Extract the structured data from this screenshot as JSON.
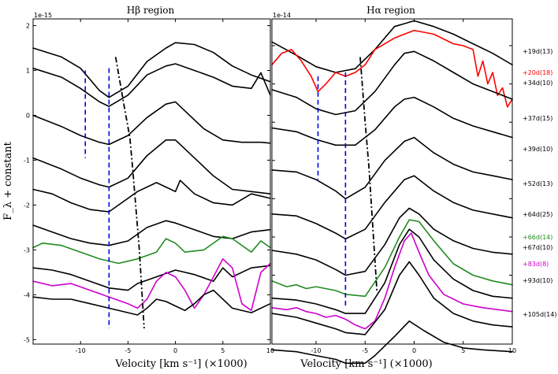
{
  "chart_data": {
    "type": "line",
    "panels": [
      {
        "title": "Hβ region",
        "scale_label": "1e-15",
        "xlim": [
          -15,
          10
        ],
        "ylim": [
          -5.1,
          2.15
        ],
        "xticks": [
          -10,
          -5,
          0,
          5,
          10
        ],
        "yticks": [
          -5,
          -4,
          -3,
          -2,
          -1,
          0,
          1,
          2
        ],
        "vlines": [
          -9.5,
          -7.0,
          -6.8
        ],
        "trend": {
          "x": [
            -6.3,
            -5.4,
            -4.8,
            -4.5,
            -3.8,
            -3.3
          ],
          "y": [
            1.3,
            0.2,
            -0.5,
            -1.2,
            -3.0,
            -4.75
          ]
        }
      },
      {
        "title": "Hα region",
        "scale_label": "1e-14",
        "xlim": [
          -14.5,
          10
        ],
        "ylim": [
          -1.8,
          6.7
        ],
        "xticks": [
          -10,
          -5,
          0,
          5,
          10
        ],
        "yticks": [
          0,
          1,
          2,
          3,
          4,
          5,
          6
        ],
        "tick_labels_shown": false,
        "vlines": [
          -9.8,
          -7.0,
          -6.8
        ],
        "trend": {
          "x": [
            -5.5,
            -5.0,
            -4.6,
            -4.2,
            -3.8
          ],
          "y": [
            5.7,
            4.0,
            2.8,
            1.2,
            -0.4
          ]
        }
      }
    ],
    "series": [
      {
        "name": "+19d(13)",
        "color": "#000000",
        "hb": {
          "x": [
            -15,
            -12,
            -10,
            -8,
            -7,
            -5,
            -3,
            -1,
            0,
            2,
            4,
            6,
            8,
            10
          ],
          "y": [
            1.5,
            1.3,
            1.05,
            0.55,
            0.4,
            0.65,
            1.2,
            1.5,
            1.62,
            1.58,
            1.4,
            1.1,
            0.9,
            0.75
          ]
        },
        "ha": {
          "x": [
            -14.5,
            -12,
            -10,
            -8,
            -6,
            -4,
            -2,
            0,
            2,
            4,
            6,
            8,
            10
          ],
          "y": [
            6.1,
            5.75,
            5.45,
            5.3,
            5.4,
            5.9,
            6.5,
            6.65,
            6.5,
            6.3,
            6.05,
            5.8,
            5.5
          ]
        }
      },
      {
        "name": "+20d(18)",
        "color": "#ff0000",
        "hb": null,
        "ha": {
          "x": [
            -14.5,
            -13.5,
            -12.5,
            -11.5,
            -10.5,
            -9.8,
            -9,
            -8,
            -7,
            -6,
            -5,
            -4,
            -2,
            -1,
            0,
            2,
            4,
            5,
            6,
            6.5,
            7,
            7.5,
            8,
            8.5,
            9,
            9.5,
            10
          ],
          "y": [
            5.5,
            5.8,
            5.9,
            5.6,
            5.2,
            4.8,
            5.0,
            5.3,
            5.2,
            5.3,
            5.5,
            5.9,
            6.2,
            6.3,
            6.4,
            6.3,
            6.05,
            6.0,
            5.9,
            5.2,
            5.6,
            5.0,
            5.3,
            4.7,
            4.9,
            4.4,
            4.6
          ]
        }
      },
      {
        "name": "+34d(10)",
        "color": "#000000",
        "hb": {
          "x": [
            -15,
            -12,
            -10,
            -8,
            -7,
            -5,
            -3,
            -1,
            0,
            2,
            4,
            6,
            8,
            9,
            10
          ],
          "y": [
            1.05,
            0.85,
            0.6,
            0.3,
            0.2,
            0.45,
            0.9,
            1.1,
            1.15,
            1.0,
            0.85,
            0.65,
            0.6,
            0.95,
            0.45
          ]
        },
        "ha": {
          "x": [
            -14.5,
            -12,
            -10,
            -8,
            -6,
            -4,
            -2,
            -1,
            0,
            2,
            4,
            6,
            8,
            10
          ],
          "y": [
            4.85,
            4.65,
            4.35,
            4.2,
            4.3,
            4.8,
            5.5,
            5.8,
            5.85,
            5.6,
            5.3,
            5.0,
            4.8,
            4.6
          ]
        }
      },
      {
        "name": "+37d(15)",
        "color": "#000000",
        "hb": {
          "x": [
            -15,
            -12,
            -10,
            -8,
            -7,
            -5,
            -3,
            -1,
            0,
            1,
            3,
            5,
            7,
            9,
            10
          ],
          "y": [
            0.0,
            -0.25,
            -0.45,
            -0.6,
            -0.65,
            -0.45,
            -0.05,
            0.25,
            0.3,
            0.1,
            -0.3,
            -0.55,
            -0.6,
            -0.6,
            -0.62
          ]
        },
        "ha": {
          "x": [
            -14.5,
            -12,
            -10,
            -8,
            -6,
            -4,
            -2,
            -1,
            0,
            2,
            4,
            6,
            8,
            10
          ],
          "y": [
            3.85,
            3.75,
            3.55,
            3.4,
            3.4,
            3.8,
            4.4,
            4.6,
            4.65,
            4.4,
            4.1,
            3.9,
            3.75,
            3.6
          ]
        }
      },
      {
        "name": "+39d(10)",
        "color": "#000000",
        "hb": {
          "x": [
            -15,
            -12,
            -10,
            -8,
            -7,
            -5,
            -3,
            -1,
            0,
            2,
            4,
            6,
            8,
            10
          ],
          "y": [
            -0.95,
            -1.2,
            -1.4,
            -1.55,
            -1.6,
            -1.4,
            -0.9,
            -0.55,
            -0.55,
            -0.95,
            -1.35,
            -1.65,
            -1.7,
            -1.75
          ]
        },
        "ha": {
          "x": [
            -14.5,
            -12,
            -10,
            -8,
            -7,
            -5,
            -3,
            -1,
            0,
            2,
            4,
            6,
            8,
            10
          ],
          "y": [
            2.75,
            2.7,
            2.5,
            2.2,
            2.0,
            2.3,
            3.0,
            3.5,
            3.6,
            3.2,
            2.9,
            2.7,
            2.6,
            2.5
          ]
        }
      },
      {
        "name": "+52d(13)",
        "color": "#000000",
        "hb": {
          "x": [
            -15,
            -13,
            -11,
            -9,
            -7,
            -6,
            -4,
            -2,
            -1,
            0,
            0.5,
            2,
            4,
            6,
            8,
            10
          ],
          "y": [
            -1.65,
            -1.75,
            -1.95,
            -2.1,
            -2.15,
            -2.0,
            -1.7,
            -1.5,
            -1.6,
            -1.7,
            -1.45,
            -1.75,
            -1.95,
            -2.0,
            -1.75,
            -1.85
          ]
        },
        "ha": {
          "x": [
            -14.5,
            -12,
            -10,
            -8,
            -7,
            -5,
            -3,
            -1,
            0,
            2,
            4,
            6,
            8,
            10
          ],
          "y": [
            1.6,
            1.55,
            1.35,
            1.1,
            0.95,
            1.2,
            1.9,
            2.5,
            2.6,
            2.2,
            1.9,
            1.7,
            1.6,
            1.5
          ]
        }
      },
      {
        "name": "+64d(25)",
        "color": "#000000",
        "hb": {
          "x": [
            -15,
            -13,
            -11,
            -9,
            -7,
            -5,
            -3,
            -1,
            0,
            2,
            4,
            6,
            8,
            10
          ],
          "y": [
            -2.45,
            -2.6,
            -2.75,
            -2.85,
            -2.9,
            -2.8,
            -2.5,
            -2.35,
            -2.4,
            -2.55,
            -2.7,
            -2.75,
            -2.6,
            -2.55
          ]
        },
        "ha": {
          "x": [
            -14.5,
            -12,
            -10,
            -8,
            -7,
            -5,
            -3,
            -1.5,
            -0.5,
            0.5,
            2,
            4,
            6,
            8,
            10
          ],
          "y": [
            0.65,
            0.55,
            0.4,
            0.15,
            0.0,
            0.1,
            0.8,
            1.5,
            1.75,
            1.6,
            1.2,
            0.9,
            0.7,
            0.6,
            0.55
          ]
        }
      },
      {
        "name": "+66d(14)",
        "color": "#228b22",
        "hb": {
          "x": [
            -15,
            -14,
            -12,
            -10,
            -8,
            -6,
            -4,
            -2,
            -1,
            0,
            1,
            3,
            5,
            6,
            8,
            9,
            10
          ],
          "y": [
            -2.95,
            -2.85,
            -2.9,
            -3.05,
            -3.2,
            -3.3,
            -3.2,
            -3.05,
            -2.75,
            -2.85,
            -3.05,
            -3.0,
            -2.7,
            -2.75,
            -3.05,
            -2.8,
            -2.95
          ]
        },
        "ha": {
          "x": [
            -14.5,
            -13,
            -12,
            -11,
            -10,
            -8,
            -7,
            -5,
            -3,
            -1.5,
            -0.5,
            0.5,
            2,
            4,
            6,
            8,
            10
          ],
          "y": [
            -0.15,
            -0.3,
            -0.25,
            -0.35,
            -0.3,
            -0.4,
            -0.5,
            -0.55,
            0.2,
            1.0,
            1.45,
            1.4,
            0.9,
            0.3,
            0.0,
            -0.15,
            -0.25
          ]
        }
      },
      {
        "name": "+67d(10)",
        "color": "#000000",
        "hb": {
          "x": [
            -15,
            -13,
            -11,
            -9,
            -7,
            -5,
            -4,
            -2,
            0,
            2,
            4,
            5,
            6,
            8,
            10
          ],
          "y": [
            -3.4,
            -3.45,
            -3.55,
            -3.7,
            -3.85,
            -3.9,
            -3.75,
            -3.6,
            -3.45,
            -3.55,
            -3.7,
            -3.4,
            -3.6,
            -3.4,
            -3.35
          ]
        },
        "ha": {
          "x": [
            -14.5,
            -12,
            -10,
            -8,
            -7,
            -5,
            -3,
            -1.5,
            -0.5,
            0.5,
            2,
            4,
            6,
            8,
            10
          ],
          "y": [
            -0.6,
            -0.65,
            -0.75,
            -0.9,
            -1.0,
            -1.0,
            -0.2,
            0.8,
            1.2,
            1.0,
            0.4,
            -0.1,
            -0.4,
            -0.55,
            -0.6
          ]
        }
      },
      {
        "name": "+83d(8)",
        "color": "#cc00cc",
        "hb": {
          "x": [
            -15,
            -13,
            -11,
            -9,
            -7,
            -5,
            -4,
            -3,
            -2,
            -1,
            0,
            1,
            2,
            3,
            4,
            5,
            6,
            7,
            8,
            9,
            10
          ],
          "y": [
            -3.7,
            -3.8,
            -3.75,
            -3.9,
            -4.05,
            -4.2,
            -4.3,
            -4.1,
            -3.7,
            -3.5,
            -3.6,
            -3.9,
            -4.3,
            -4.0,
            -3.6,
            -3.2,
            -3.4,
            -4.2,
            -4.35,
            -3.5,
            -3.3
          ]
        },
        "ha": {
          "x": [
            -14.5,
            -13,
            -12,
            -11,
            -10,
            -9,
            -8,
            -7,
            -6,
            -5,
            -4,
            -3,
            -2,
            -1,
            -0.3,
            0.5,
            1.5,
            3,
            5,
            7,
            10
          ],
          "y": [
            -0.85,
            -0.9,
            -0.85,
            -0.95,
            -1.0,
            -1.1,
            -1.05,
            -1.15,
            -1.3,
            -1.4,
            -1.2,
            -0.6,
            0.2,
            0.9,
            1.1,
            0.6,
            0.0,
            -0.5,
            -0.75,
            -0.85,
            -0.95
          ]
        }
      },
      {
        "name": "+93d(10)",
        "color": "#000000",
        "hb": {
          "x": [
            -15,
            -13,
            -11,
            -9,
            -7,
            -5,
            -4,
            -3,
            -2,
            -1,
            0,
            1,
            2,
            3,
            4,
            6,
            8,
            10
          ],
          "y": [
            -4.05,
            -4.1,
            -4.1,
            -4.2,
            -4.3,
            -4.4,
            -4.45,
            -4.3,
            -4.1,
            -4.15,
            -4.25,
            -4.35,
            -4.2,
            -4.0,
            -3.9,
            -4.3,
            -4.4,
            -4.2
          ]
        },
        "ha": {
          "x": [
            -14.5,
            -12,
            -10,
            -8,
            -7,
            -5,
            -3,
            -1.5,
            -0.5,
            0.5,
            2,
            4,
            6,
            8,
            10
          ],
          "y": [
            -1.0,
            -1.1,
            -1.25,
            -1.4,
            -1.5,
            -1.55,
            -0.9,
            0.0,
            0.35,
            0.0,
            -0.6,
            -1.0,
            -1.2,
            -1.3,
            -1.35
          ]
        }
      },
      {
        "name": "+105d(14)",
        "color": "#000000",
        "hb": null,
        "ha": {
          "x": [
            -14.5,
            -12,
            -10,
            -8,
            -7,
            -5,
            -4,
            -2,
            -0.5,
            1,
            3,
            5,
            7,
            10
          ],
          "y": [
            -1.95,
            -2.0,
            -2.1,
            -2.2,
            -2.3,
            -2.3,
            -2.1,
            -1.6,
            -1.2,
            -1.45,
            -1.75,
            -1.9,
            -1.95,
            -2.0
          ]
        }
      }
    ],
    "xlabel": "Velocity [km s⁻¹] (×1000)",
    "ylabel": "F_λ + constant"
  }
}
